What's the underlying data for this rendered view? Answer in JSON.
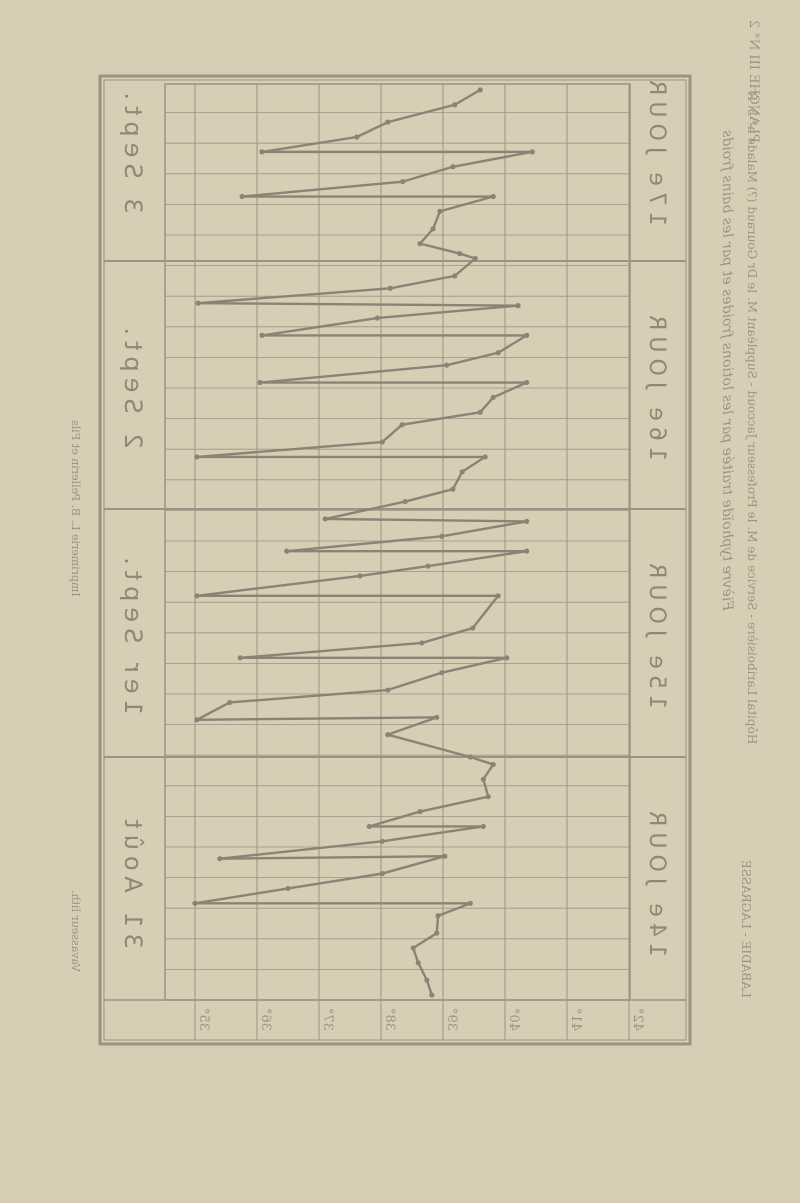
{
  "header": {
    "plate": "PLANCHE III N° 2",
    "title": "Fièvre typhoïde traitée par les lotions froides et par les bains froids",
    "subtitle": "Hôpital Lariboisière - Service de M. le Professeur Jaccoud - Suppléant M. le Dr Gouraud (?) Malade n° 3. R",
    "publisher": "LABADIE - LAGRASSE",
    "printer": "Imprimerie L. B. Pellerin et Fils",
    "lithographer": "Vavasseur lith."
  },
  "colors": {
    "paper": "#d8ceb6",
    "grid": "#9a9483",
    "curve": "#8a8477",
    "text": "#9c9482"
  },
  "chart_data": {
    "type": "line",
    "title": "Fièvre typhoïde traitée par les lotions froides et par les bains froids",
    "orientation": "rotated and mirrored (seen through the page)",
    "xlabel": "",
    "ylabel": "",
    "temperature_ticks": [
      "35°",
      "36°",
      "37°",
      "38°",
      "39°",
      "40°",
      "41°",
      "42°"
    ],
    "temperature_range": [
      35,
      42
    ],
    "day_range": [
      14,
      17.7
    ],
    "days": [
      {
        "label": "14e JOUR",
        "date": "31 Août",
        "start": 14
      },
      {
        "label": "15e JOUR",
        "date": "1er Sept.",
        "start": 15
      },
      {
        "label": "16e JOUR",
        "date": "2 Sept.",
        "start": 16
      },
      {
        "label": "17e JOUR",
        "date": "3 Sept.",
        "start": 17
      }
    ],
    "grid": true,
    "series": [
      {
        "points": [
          [
            14.04,
            38.82
          ],
          [
            14.1,
            38.74
          ],
          [
            14.17,
            38.6
          ],
          [
            14.23,
            38.52
          ],
          [
            14.29,
            38.9
          ],
          [
            14.36,
            38.92
          ],
          [
            14.41,
            39.44
          ],
          [
            14.41,
            35.0
          ],
          [
            14.47,
            36.5
          ],
          [
            14.53,
            38.02
          ],
          [
            14.6,
            39.03
          ],
          [
            14.59,
            35.4
          ],
          [
            14.66,
            38.02
          ],
          [
            14.72,
            39.65
          ],
          [
            14.72,
            37.81
          ],
          [
            14.78,
            38.63
          ],
          [
            14.84,
            39.73
          ],
          [
            14.91,
            39.65
          ],
          [
            14.97,
            39.81
          ],
          [
            15.0,
            39.44
          ],
          [
            15.09,
            38.11
          ],
          [
            15.16,
            38.9
          ],
          [
            15.15,
            35.03
          ],
          [
            15.22,
            35.56
          ],
          [
            15.27,
            38.11
          ],
          [
            15.34,
            38.98
          ],
          [
            15.4,
            40.03
          ],
          [
            15.4,
            35.73
          ],
          [
            15.46,
            38.66
          ],
          [
            15.52,
            39.48
          ],
          [
            15.65,
            39.89
          ],
          [
            15.65,
            35.03
          ],
          [
            15.73,
            37.66
          ],
          [
            15.77,
            38.76
          ],
          [
            15.83,
            40.35
          ],
          [
            15.83,
            36.48
          ],
          [
            15.89,
            38.98
          ],
          [
            15.95,
            40.35
          ],
          [
            15.96,
            37.1
          ],
          [
            16.03,
            38.39
          ],
          [
            16.08,
            39.16
          ],
          [
            16.15,
            39.31
          ],
          [
            16.21,
            39.68
          ],
          [
            16.21,
            35.03
          ],
          [
            16.27,
            38.02
          ],
          [
            16.34,
            38.34
          ],
          [
            16.39,
            39.6
          ],
          [
            16.45,
            39.81
          ],
          [
            16.51,
            40.35
          ],
          [
            16.51,
            36.05
          ],
          [
            16.58,
            39.06
          ],
          [
            16.63,
            39.89
          ],
          [
            16.7,
            40.35
          ],
          [
            16.7,
            36.08
          ],
          [
            16.77,
            37.94
          ],
          [
            16.82,
            40.21
          ],
          [
            16.83,
            35.05
          ],
          [
            16.89,
            38.15
          ],
          [
            16.94,
            39.19
          ],
          [
            17.01,
            39.52
          ],
          [
            17.03,
            39.27
          ],
          [
            17.07,
            38.63
          ],
          [
            17.13,
            38.84
          ],
          [
            17.2,
            38.95
          ],
          [
            17.26,
            39.81
          ],
          [
            17.26,
            35.76
          ],
          [
            17.32,
            38.35
          ],
          [
            17.38,
            39.16
          ],
          [
            17.44,
            40.44
          ],
          [
            17.44,
            36.08
          ],
          [
            17.5,
            37.61
          ],
          [
            17.56,
            38.11
          ],
          [
            17.63,
            39.19
          ],
          [
            17.69,
            39.6
          ]
        ]
      }
    ]
  }
}
